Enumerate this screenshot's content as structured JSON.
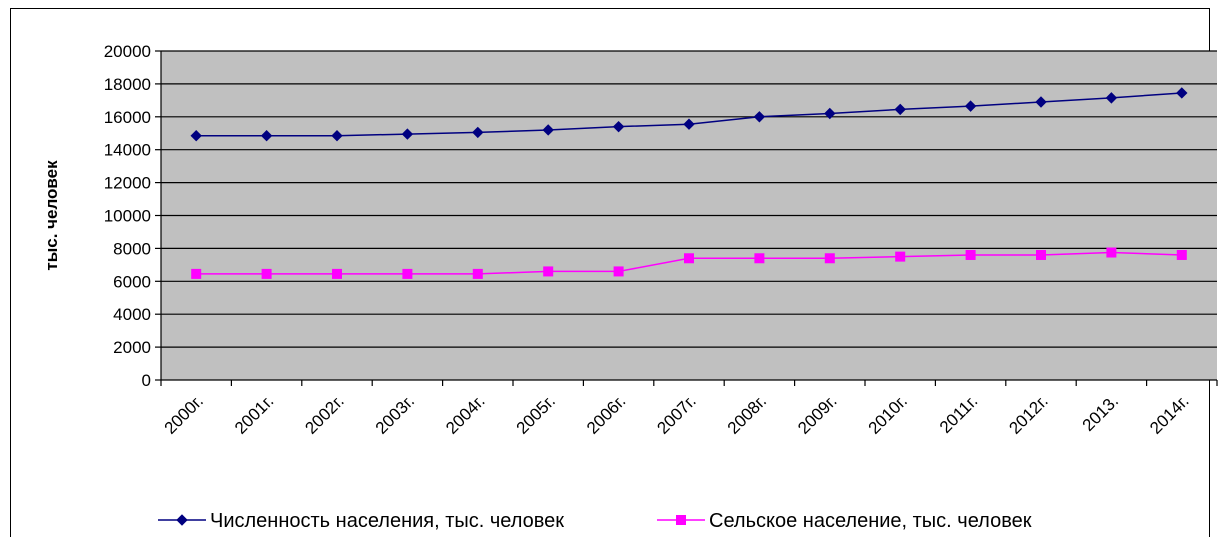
{
  "chart_data": {
    "type": "line",
    "categories": [
      "2000г.",
      "2001г.",
      "2002г.",
      "2003г.",
      "2004г.",
      "2005г.",
      "2006г.",
      "2007г.",
      "2008г.",
      "2009г.",
      "2010г.",
      "2011г.",
      "2012г.",
      "2013.",
      "2014г."
    ],
    "series": [
      {
        "name": "Численность населения, тыс. человек",
        "color": "#000080",
        "marker": "diamond",
        "values": [
          14850,
          14850,
          14850,
          14950,
          15050,
          15200,
          15400,
          15550,
          16000,
          16200,
          16450,
          16650,
          16900,
          17150,
          17450
        ]
      },
      {
        "name": "Сельское население, тыс. человек",
        "color": "#ff00ff",
        "marker": "square",
        "values": [
          6450,
          6450,
          6450,
          6450,
          6450,
          6600,
          6600,
          7400,
          7400,
          7400,
          7500,
          7600,
          7600,
          7750,
          7600
        ]
      }
    ],
    "title": "",
    "xlabel": "",
    "ylabel": "тыс. человек",
    "ylim": [
      0,
      20000
    ],
    "ystep": 2000,
    "grid": true,
    "legend": "bottom",
    "plot_background": "#c0c0c0"
  }
}
